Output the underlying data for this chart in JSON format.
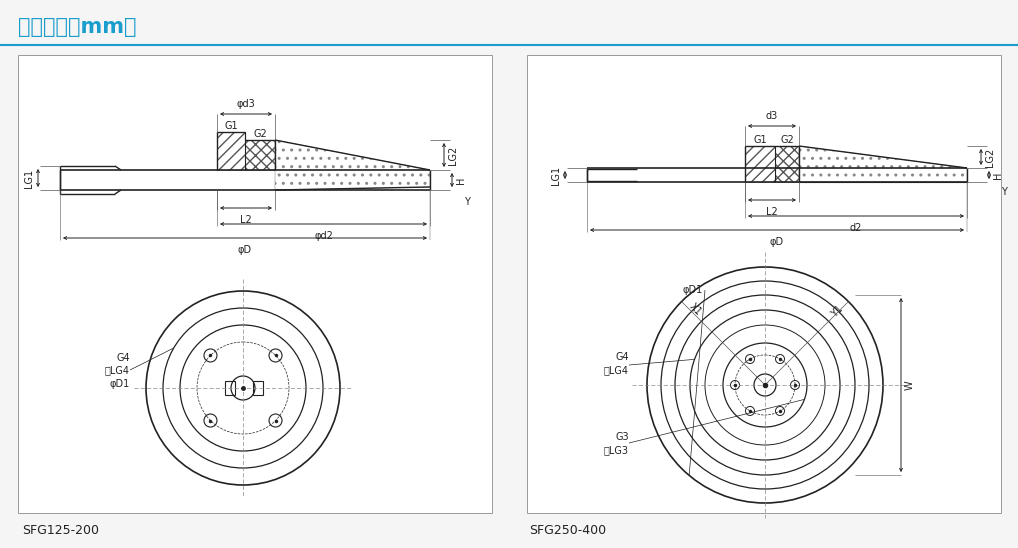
{
  "title": "尺寸规格（mm）",
  "title_color": "#1a9dcc",
  "bg_color": "#f5f5f5",
  "panel_bg": "#ffffff",
  "line_color": "#222222",
  "dim_color": "#222222",
  "label1": "SFG125-200",
  "label2": "SFG250-400",
  "hatch_color": "#555555"
}
